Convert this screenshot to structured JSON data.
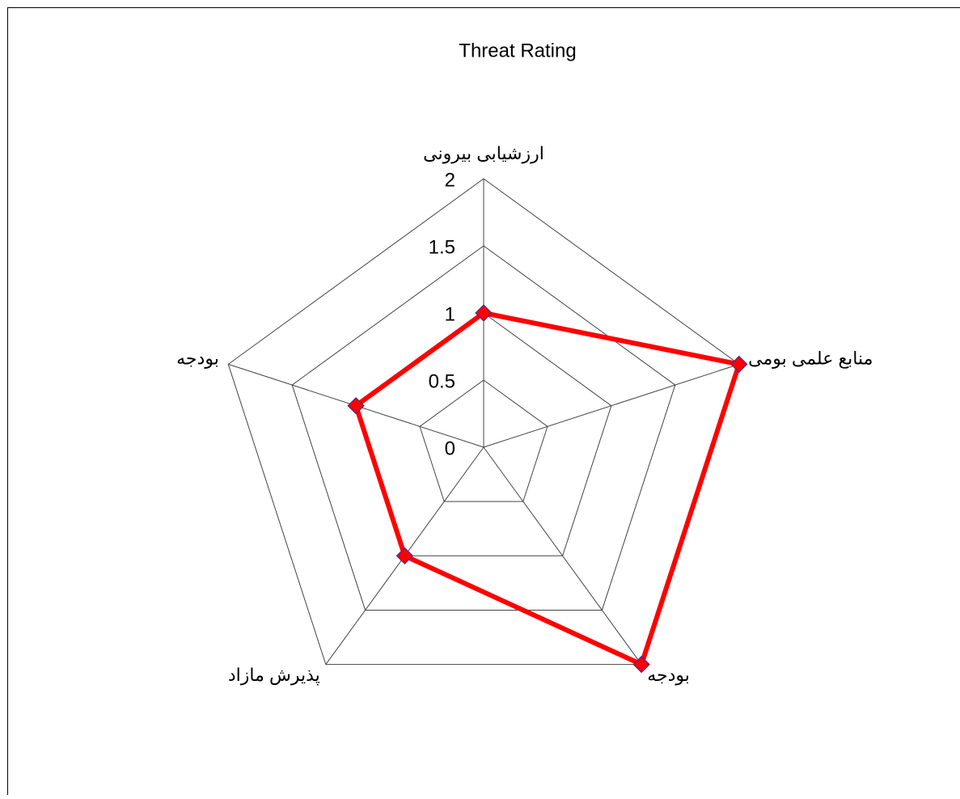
{
  "chart_data": {
    "type": "radar",
    "title": "Threat Rating",
    "categories": [
      "ارزشیابی بیرونی",
      "منابع علمی بومی",
      "بودجه",
      "پذیرش مازاد",
      "بودجه"
    ],
    "values": [
      1,
      2,
      2,
      1,
      1
    ],
    "color": "#ff0000",
    "ylim": [
      0,
      2
    ],
    "yticks": [
      0,
      0.5,
      1,
      1.5,
      2
    ],
    "grid": true
  }
}
